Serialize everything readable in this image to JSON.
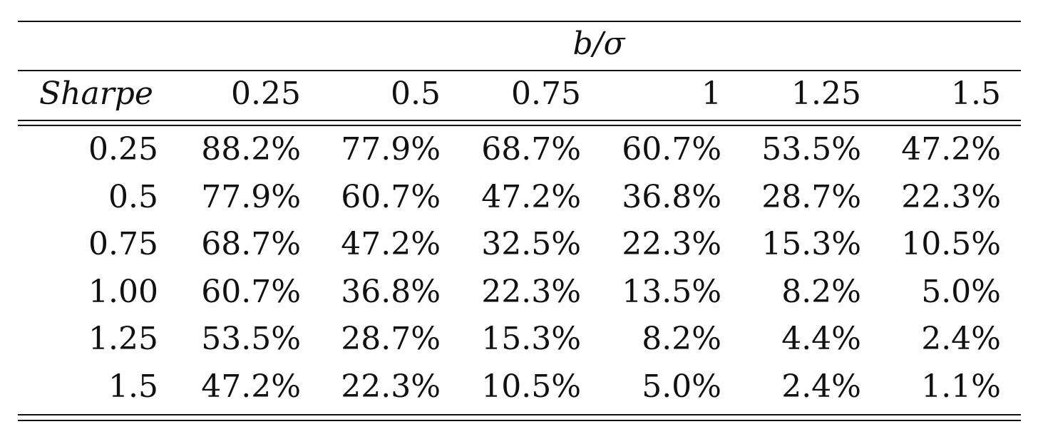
{
  "table": {
    "group_header": "b/σ",
    "header": [
      "Sharpe",
      "0.25",
      "0.5",
      "0.75",
      "1",
      "1.25",
      "1.5"
    ],
    "rows": [
      [
        "0.25",
        "88.2%",
        "77.9%",
        "68.7%",
        "60.7%",
        "53.5%",
        "47.2%"
      ],
      [
        "0.5",
        "77.9%",
        "60.7%",
        "47.2%",
        "36.8%",
        "28.7%",
        "22.3%"
      ],
      [
        "0.75",
        "68.7%",
        "47.2%",
        "32.5%",
        "22.3%",
        "15.3%",
        "10.5%"
      ],
      [
        "1.00",
        "60.7%",
        "36.8%",
        "22.3%",
        "13.5%",
        "8.2%",
        "5.0%"
      ],
      [
        "1.25",
        "53.5%",
        "28.7%",
        "15.3%",
        "8.2%",
        "4.4%",
        "2.4%"
      ],
      [
        "1.5",
        "47.2%",
        "22.3%",
        "10.5%",
        "5.0%",
        "2.4%",
        "1.1%"
      ]
    ]
  }
}
